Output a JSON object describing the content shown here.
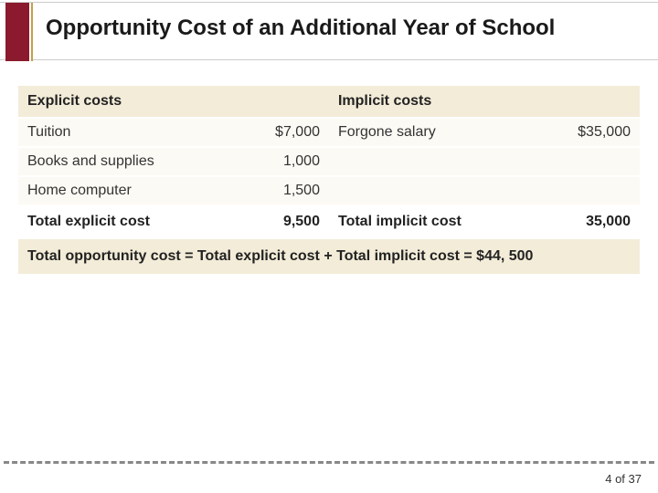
{
  "title": "Opportunity Cost of an Additional Year of School",
  "colors": {
    "accent_block": "#8b1a2e",
    "accent_trim": "#c4a04a",
    "band_bg": "#f3ecd8",
    "row_bg": "#fcfaf4",
    "rule": "#cccccc",
    "dash": "#888888",
    "text": "#1a1a1a"
  },
  "table": {
    "headers": {
      "left": "Explicit costs",
      "right": "Implicit costs"
    },
    "rows": [
      {
        "left_label": "Tuition",
        "left_value": "$7,000",
        "right_label": "Forgone salary",
        "right_value": "$35,000"
      },
      {
        "left_label": "Books and supplies",
        "left_value": "1,000",
        "right_label": "",
        "right_value": ""
      },
      {
        "left_label": "Home computer",
        "left_value": "1,500",
        "right_label": "",
        "right_value": ""
      }
    ],
    "totals": {
      "left_label": "Total explicit cost",
      "left_value": "9,500",
      "right_label": "Total implicit cost",
      "right_value": "35,000"
    },
    "summary": "Total opportunity cost = Total explicit cost + Total implicit cost = $44, 500"
  },
  "pager": {
    "current": "4",
    "sep": " of ",
    "total": "37"
  }
}
